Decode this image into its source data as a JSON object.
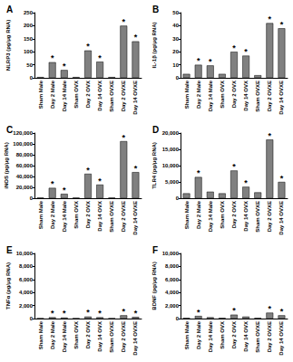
{
  "chart_data": [
    {
      "type": "bar",
      "title": "A",
      "y_label": "NLRP3 (pg/μg RNA)",
      "categories": [
        "Sham Male",
        "Day 2 Male",
        "Day 14 Male",
        "Sham OVX",
        "Day 2 OVX",
        "Day 14 OVX",
        "Sham OVXE",
        "Day 2 OVXE",
        "Day 14 OVXE"
      ],
      "values": [
        3,
        60,
        30,
        3,
        105,
        62,
        3,
        200,
        140
      ],
      "color": "#808080",
      "ylim": [
        0,
        250
      ],
      "yticks": [
        0,
        50,
        100,
        150,
        200,
        250
      ],
      "grid": false,
      "annotations": [
        {
          "category": "Day 2 Male",
          "text": "*"
        },
        {
          "category": "Day 14 Male",
          "text": "*"
        },
        {
          "category": "Day 2 OVX",
          "text": "*"
        },
        {
          "category": "Day 14 OVX",
          "text": "*"
        },
        {
          "category": "Day 2 OVXE",
          "text": "*"
        },
        {
          "category": "Day 14 OVXE",
          "text": "*"
        }
      ]
    },
    {
      "type": "bar",
      "title": "B",
      "y_label": "IL-1β (pg/μg RNA)",
      "categories": [
        "Sham Male",
        "Day 2 Male",
        "Day 14 Male",
        "Sham OVX",
        "Day 2 OVX",
        "Day 14 OVX",
        "Sham OVXE",
        "Day 2 OVXE",
        "Day 14 OVXE"
      ],
      "values": [
        3,
        10,
        9.5,
        3,
        20,
        17,
        2,
        42,
        38
      ],
      "color": "#808080",
      "ylim": [
        0,
        50
      ],
      "yticks": [
        0,
        10,
        20,
        30,
        40,
        50
      ],
      "grid": false,
      "annotations": [
        {
          "category": "Day 2 Male",
          "text": "*"
        },
        {
          "category": "Day 14 Male",
          "text": "*"
        },
        {
          "category": "Day 2 OVX",
          "text": "*"
        },
        {
          "category": "Day 14 OVX",
          "text": "*"
        },
        {
          "category": "Day 2 OVXE",
          "text": "*"
        },
        {
          "category": "Day 14 OVXE",
          "text": "*"
        }
      ]
    },
    {
      "type": "bar",
      "title": "C",
      "y_label": "iNOS (pg/μg RNA)",
      "categories": [
        "Sham Male",
        "Day 2 Male",
        "Day 14 Male",
        "Sham OVX",
        "Day 2 OVX",
        "Day 14 OVX",
        "Sham OVXE",
        "Day 2 OVXE",
        "Day 14 OVXE"
      ],
      "values": [
        1000,
        19000,
        8000,
        1000,
        45000,
        25000,
        1000,
        105000,
        48000
      ],
      "color": "#808080",
      "ylim": [
        0,
        120000
      ],
      "yticks": [
        0,
        20000,
        40000,
        60000,
        80000,
        100000,
        120000
      ],
      "grid": false,
      "annotations": [
        {
          "category": "Day 2 Male",
          "text": "*"
        },
        {
          "category": "Day 14 Male",
          "text": "*"
        },
        {
          "category": "Day 2 OVX",
          "text": "*"
        },
        {
          "category": "Day 14 OVX",
          "text": "*"
        },
        {
          "category": "Day 2 OVXE",
          "text": "*"
        },
        {
          "category": "Day 14 OVXE",
          "text": "*"
        }
      ]
    },
    {
      "type": "bar",
      "title": "D",
      "y_label": "TLR4 (pg/μg RNA)",
      "categories": [
        "Sham Male",
        "Day 2 Male",
        "Day 14 Male",
        "Sham OVX",
        "Day 2 OVX",
        "Day 14 OVX",
        "Sham OVXE",
        "Day 2 OVXE",
        "Day 14 OVXE"
      ],
      "values": [
        1500,
        6500,
        2000,
        1500,
        8500,
        3500,
        1800,
        18000,
        5000
      ],
      "color": "#808080",
      "ylim": [
        0,
        20000
      ],
      "yticks": [
        0,
        5000,
        10000,
        15000,
        20000
      ],
      "grid": false,
      "annotations": [
        {
          "category": "Day 2 Male",
          "text": "*"
        },
        {
          "category": "Day 2 OVX",
          "text": "*"
        },
        {
          "category": "Day 14 OVX",
          "text": "*"
        },
        {
          "category": "Day 2 OVXE",
          "text": "*"
        },
        {
          "category": "Day 14 OVXE",
          "text": "*"
        }
      ]
    },
    {
      "type": "bar",
      "title": "E",
      "y_label": "TNFα (pg/μg RNA)",
      "categories": [
        "Sham Male",
        "Day 2 Male",
        "Day 14 Male",
        "Sham OVX",
        "Day 2 OVX",
        "Day 14 OVX",
        "Sham OVXE",
        "Day 2 OVXE",
        "Day 14 OVXE"
      ],
      "values": [
        50,
        200,
        150,
        50,
        300,
        200,
        50,
        500,
        250
      ],
      "color": "#808080",
      "ylim": [
        0,
        10000
      ],
      "yticks": [
        0,
        2000,
        4000,
        6000,
        8000,
        10000
      ],
      "grid": false,
      "annotations": [
        {
          "category": "Day 2 Male",
          "text": "*"
        },
        {
          "category": "Day 14 Male",
          "text": "*"
        },
        {
          "category": "Day 2 OVX",
          "text": "*"
        },
        {
          "category": "Day 14 OVX",
          "text": "*"
        },
        {
          "category": "Day 2 OVXE",
          "text": "*"
        },
        {
          "category": "Day 14 OVXE",
          "text": "*"
        }
      ]
    },
    {
      "type": "bar",
      "title": "F",
      "y_label": "BDNF (pg/μg RNA)",
      "categories": [
        "Sham Male",
        "Day 2 Male",
        "Day 14 Male",
        "Sham OVX",
        "Day 2 OVX",
        "Day 14 OVX",
        "Sham OVXE",
        "Day 2 OVXE",
        "Day 14 OVXE"
      ],
      "values": [
        100,
        400,
        200,
        100,
        600,
        300,
        100,
        900,
        500
      ],
      "color": "#808080",
      "ylim": [
        0,
        10000
      ],
      "yticks": [
        0,
        2000,
        4000,
        6000,
        8000,
        10000
      ],
      "grid": false,
      "annotations": [
        {
          "category": "Day 2 Male",
          "text": "*"
        },
        {
          "category": "Day 2 OVX",
          "text": "*"
        },
        {
          "category": "Day 2 OVXE",
          "text": "*"
        },
        {
          "category": "Day 14 OVXE",
          "text": "*"
        }
      ]
    }
  ]
}
